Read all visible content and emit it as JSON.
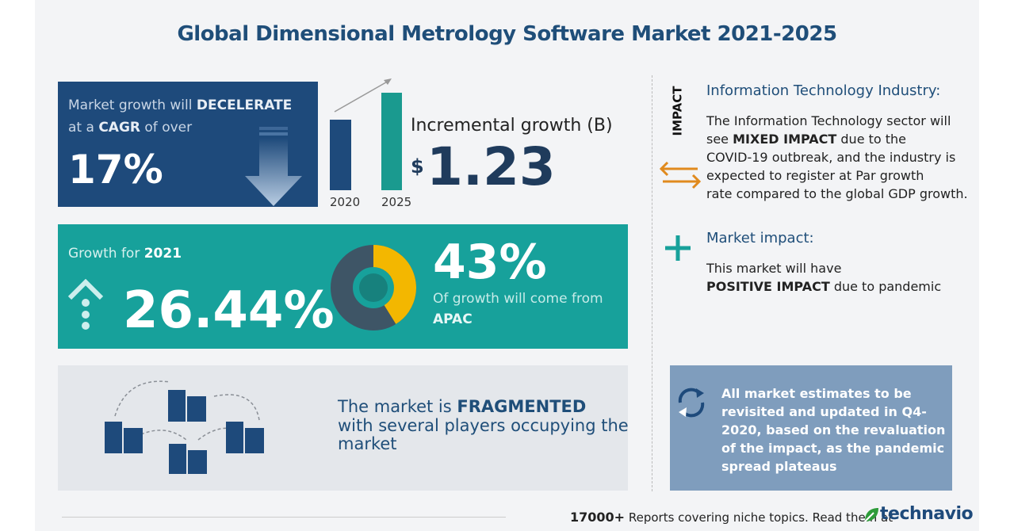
{
  "title": "Global Dimensional Metrology Software Market 2021-2025",
  "cagr_box": {
    "line1": [
      "Market growth will",
      "DECELERATE"
    ],
    "line2": [
      "at a",
      "CAGR",
      "of over"
    ],
    "value": "17%"
  },
  "incremental": {
    "years": [
      "2020",
      "2025"
    ],
    "label": "Incremental growth (B)",
    "currency": "$",
    "value": "1.23"
  },
  "growth_box": {
    "label": "Growth for",
    "year": "2021",
    "value": "26.44%",
    "share": "43%",
    "share_text": "Of growth will come from",
    "region": "APAC"
  },
  "fragmented": {
    "line1": [
      "The market is",
      "FRAGMENTED"
    ],
    "line2": "with several players occupying the",
    "line3": "market"
  },
  "impact": {
    "heading": "IMPACT",
    "industry_title": "Information Technology Industry:",
    "industry_lines": [
      "The Information Technology sector will",
      [
        "see",
        "MIXED IMPACT",
        "due to the"
      ],
      "COVID-19 outbreak, and the industry is",
      "expected to register at Par growth",
      "rate compared to the global GDP growth."
    ],
    "market_title": "Market impact:",
    "market_line1": "This market will have",
    "market_line2": [
      "POSITIVE IMPACT",
      "due to pandemic"
    ]
  },
  "notice": [
    "All market estimates to be",
    "revisited and updated in Q4-",
    "2020, based on the revaluation",
    "of the impact, as the pandemic",
    "spread plateaus"
  ],
  "footer": {
    "count": "17000+",
    "text": "Reports covering niche topics. Read them at",
    "brand": "technavio"
  }
}
